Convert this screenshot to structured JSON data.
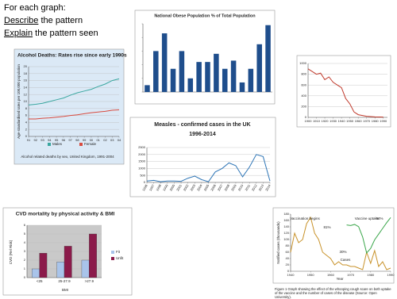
{
  "instructions": {
    "heading": "For each graph:",
    "lines": [
      {
        "underlined": "Describe",
        "rest": "the pattern"
      },
      {
        "underlined": "Explain",
        "rest": "the pattern seen"
      }
    ]
  },
  "chart_data": [
    {
      "type": "line",
      "title": "Alcohol Deaths: Rates rise since early 1990s",
      "ylabel": "Age-standardised rates per 100,000 population",
      "xlabel": "Alcohol related deaths by sex, United Kingdom, 1991-2004",
      "x": [
        1991,
        1992,
        1993,
        1994,
        1995,
        1996,
        1997,
        1998,
        1999,
        2000,
        2001,
        2002,
        2003,
        2004
      ],
      "xlim": [
        1991,
        2004
      ],
      "xticks": [
        {
          "value": 1991,
          "label": "91"
        },
        {
          "value": 1992,
          "label": "92"
        },
        {
          "value": 1993,
          "label": "93"
        },
        {
          "value": 1994,
          "label": "94"
        },
        {
          "value": 1995,
          "label": "95"
        },
        {
          "value": 1996,
          "label": "96"
        },
        {
          "value": 1997,
          "label": "97"
        },
        {
          "value": 1998,
          "label": "98"
        },
        {
          "value": 1999,
          "label": "99"
        },
        {
          "value": 2000,
          "label": "00"
        },
        {
          "value": 2001,
          "label": "01"
        },
        {
          "value": 2002,
          "label": "02"
        },
        {
          "value": 2003,
          "label": "03"
        },
        {
          "value": 2004,
          "label": "04"
        }
      ],
      "ylim": [
        0,
        20
      ],
      "yticks": [
        0,
        2,
        4,
        6,
        8,
        10,
        12,
        14,
        16,
        18,
        20
      ],
      "grid": true,
      "series": [
        {
          "name": "Males",
          "color": "#3aa7a0",
          "values": [
            9,
            9.2,
            9.5,
            10,
            10.5,
            11,
            11.8,
            12.5,
            13,
            13.5,
            14.3,
            15,
            16,
            16.5
          ]
        },
        {
          "name": "Female",
          "color": "#d94b3f",
          "values": [
            5,
            5,
            5.2,
            5.3,
            5.5,
            5.7,
            6,
            6.2,
            6.5,
            6.8,
            7,
            7.2,
            7.5,
            7.6
          ]
        }
      ]
    },
    {
      "type": "bar",
      "title": "National Obese Population % of Total Population",
      "categories": [
        null,
        null,
        null,
        null,
        null,
        null,
        null,
        null,
        null,
        null,
        null,
        null,
        null,
        null,
        null
      ],
      "values": [
        5,
        30,
        43,
        17,
        30,
        10,
        22,
        22,
        28,
        17,
        23,
        7,
        17,
        35,
        49
      ],
      "color": "#1f4e8c",
      "ylim": [
        0,
        50
      ],
      "yticks": [
        0,
        10,
        20,
        30,
        40,
        50
      ],
      "grid": false
    },
    {
      "type": "line",
      "x": [
        1900,
        1905,
        1910,
        1915,
        1920,
        1925,
        1930,
        1935,
        1940,
        1945,
        1950,
        1955,
        1960,
        1970,
        1980,
        1990
      ],
      "xlim": [
        1900,
        1995
      ],
      "xticks": [
        1900,
        1910,
        1920,
        1930,
        1940,
        1950,
        1960,
        1970,
        1980,
        1990
      ],
      "ylim": [
        0,
        1000
      ],
      "yticks": [
        0,
        200,
        400,
        600,
        800,
        1000
      ],
      "grid": true,
      "series": [
        {
          "color": "#c0392b",
          "values": [
            900,
            850,
            800,
            820,
            700,
            750,
            650,
            600,
            550,
            350,
            250,
            100,
            50,
            20,
            10,
            5
          ]
        }
      ]
    },
    {
      "type": "line",
      "title": "Measles - confirmed cases in the UK",
      "subtitle": "1996-2014",
      "x": [
        1996,
        1997,
        1998,
        1999,
        2000,
        2001,
        2002,
        2003,
        2004,
        2005,
        2006,
        2007,
        2008,
        2009,
        2010,
        2011,
        2012,
        2013,
        2014
      ],
      "xlim": [
        1996,
        2014
      ],
      "xticks": [
        1996,
        1997,
        1998,
        1999,
        2000,
        2001,
        2002,
        2003,
        2004,
        2005,
        2006,
        2007,
        2008,
        2009,
        2010,
        2011,
        2012,
        2013,
        2014
      ],
      "ylim": [
        0,
        2500
      ],
      "yticks": [
        0,
        500,
        1000,
        1500,
        2000,
        2500
      ],
      "grid": true,
      "series": [
        {
          "color": "#2e75b6",
          "values": [
            100,
            150,
            50,
            100,
            100,
            80,
            300,
            450,
            200,
            50,
            750,
            1000,
            1400,
            1200,
            400,
            1100,
            2000,
            1850,
            100
          ]
        }
      ]
    },
    {
      "type": "bar",
      "title": "CVD mortality by physical activity & BMI",
      "ylabel": "CVD (Rel Risk)",
      "xlabel": "BMI",
      "categories": [
        "<25",
        "25-27.9",
        ">27.9"
      ],
      "ylim": [
        0,
        6
      ],
      "yticks": [
        0,
        1,
        2,
        3,
        4,
        5,
        6
      ],
      "grid": true,
      "series": [
        {
          "name": "Fit",
          "color": "#a9c4ea",
          "values": [
            1,
            1.8,
            2
          ]
        },
        {
          "name": "Unfit",
          "color": "#8b1a4a",
          "values": [
            2.8,
            3.6,
            5
          ]
        }
      ]
    },
    {
      "type": "line",
      "ylabel": "Notified cases (thousands)",
      "xlabel": "Year",
      "xlim": [
        1940,
        1990
      ],
      "xticks": [
        1940,
        1950,
        1960,
        1970,
        1980,
        1990
      ],
      "ylim": [
        0,
        180
      ],
      "yticks": [
        0,
        20,
        40,
        60,
        80,
        100,
        120,
        140,
        160,
        180
      ],
      "y2lim": [
        0,
        100
      ],
      "grid": false,
      "annotations": [
        "Vaccination begins",
        "Vaccine uptake",
        "81%",
        "30%",
        "94%",
        "Cases"
      ],
      "caption": "Figure 1 Graph showing the effect of the whooping cough scare on both uptake of the vaccine and the number of cases of the disease (Source: Open University).",
      "series": [
        {
          "color": "#c8922a",
          "x": [
            1940,
            1942,
            1944,
            1946,
            1948,
            1950,
            1952,
            1954,
            1956,
            1958,
            1960,
            1962,
            1964,
            1966,
            1968,
            1970,
            1972,
            1974,
            1976,
            1978,
            1980,
            1982,
            1984,
            1986,
            1988,
            1990
          ],
          "values": [
            60,
            120,
            90,
            100,
            150,
            170,
            120,
            100,
            60,
            50,
            40,
            20,
            30,
            20,
            20,
            15,
            15,
            10,
            5,
            60,
            25,
            65,
            15,
            30,
            5,
            10
          ]
        },
        {
          "color": "#3aa64a",
          "axis": "y2",
          "x": [
            1968,
            1970,
            1972,
            1974,
            1976,
            1978,
            1980,
            1982,
            1984,
            1986,
            1988,
            1990
          ],
          "values": [
            81,
            80,
            82,
            78,
            60,
            32,
            40,
            55,
            65,
            75,
            85,
            94
          ]
        }
      ]
    }
  ]
}
